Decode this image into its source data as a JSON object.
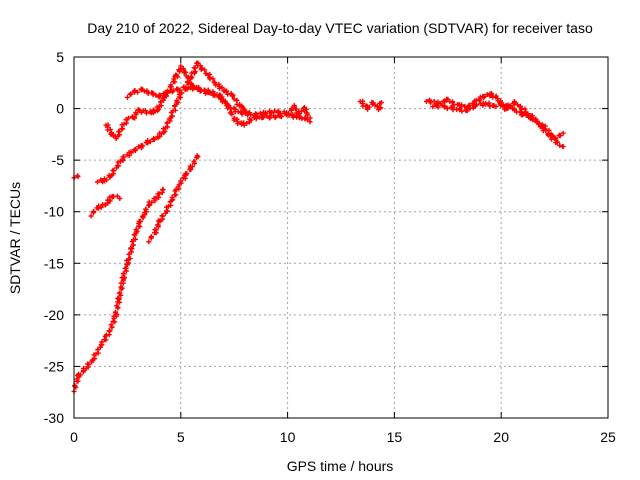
{
  "chart_data": {
    "type": "scatter",
    "title": "Day 210 of 2022, Sidereal Day-to-day VTEC variation (SDTVAR) for receiver taso",
    "xlabel": "GPS time / hours",
    "ylabel": "SDTVAR / TECUs",
    "xlim": [
      0,
      25
    ],
    "ylim": [
      -30,
      5
    ],
    "xticks": [
      0,
      5,
      10,
      15,
      20,
      25
    ],
    "yticks": [
      -30,
      -25,
      -20,
      -15,
      -10,
      -5,
      0,
      5
    ],
    "grid": true,
    "colors": {
      "series": "#ff0000",
      "grid": "#a0a0a0",
      "axis": "#000000"
    },
    "series": [
      {
        "name": "s1",
        "points": [
          [
            0.0,
            -27.3
          ],
          [
            0.2,
            -26.0
          ],
          [
            0.5,
            -25.3
          ],
          [
            0.9,
            -24.3
          ],
          [
            1.3,
            -22.8
          ],
          [
            1.7,
            -21.5
          ],
          [
            1.95,
            -20.0
          ],
          [
            2.1,
            -18.5
          ],
          [
            2.3,
            -16.5
          ],
          [
            2.5,
            -15.0
          ],
          [
            2.7,
            -13.5
          ],
          [
            2.9,
            -12.0
          ],
          [
            3.1,
            -11.0
          ],
          [
            3.3,
            -10.2
          ],
          [
            3.5,
            -9.3
          ],
          [
            3.8,
            -8.8
          ],
          [
            4.2,
            -7.8
          ]
        ]
      },
      {
        "name": "s2",
        "points": [
          [
            3.5,
            -12.8
          ],
          [
            3.8,
            -12.0
          ],
          [
            4.0,
            -11.0
          ],
          [
            4.3,
            -10.0
          ],
          [
            4.6,
            -8.8
          ],
          [
            4.9,
            -7.5
          ],
          [
            5.2,
            -6.5
          ],
          [
            5.5,
            -5.7
          ],
          [
            5.8,
            -4.5
          ]
        ]
      },
      {
        "name": "s3",
        "points": [
          [
            0.8,
            -10.3
          ],
          [
            1.1,
            -9.6
          ],
          [
            1.4,
            -9.4
          ],
          [
            1.6,
            -9.0
          ],
          [
            1.8,
            -8.5
          ],
          [
            2.1,
            -8.6
          ]
        ]
      },
      {
        "name": "s4",
        "points": [
          [
            1.1,
            -7.0
          ],
          [
            1.4,
            -7.0
          ],
          [
            1.7,
            -6.6
          ],
          [
            2.0,
            -5.6
          ],
          [
            2.3,
            -4.8
          ],
          [
            2.7,
            -4.2
          ],
          [
            3.1,
            -3.7
          ],
          [
            3.5,
            -3.2
          ],
          [
            3.9,
            -2.8
          ],
          [
            4.2,
            -2.2
          ],
          [
            4.5,
            -1.0
          ],
          [
            4.8,
            0.5
          ],
          [
            5.0,
            1.5
          ],
          [
            5.3,
            2.0
          ],
          [
            5.8,
            2.0
          ],
          [
            6.3,
            1.5
          ],
          [
            6.8,
            1.2
          ],
          [
            7.2,
            0.3
          ],
          [
            7.5,
            -1.0
          ],
          [
            7.8,
            -1.5
          ],
          [
            8.0,
            -1.5
          ],
          [
            8.4,
            -0.9
          ],
          [
            8.8,
            -0.8
          ],
          [
            9.2,
            -0.8
          ],
          [
            9.6,
            -0.8
          ],
          [
            10.0,
            -0.5
          ],
          [
            10.4,
            -0.8
          ],
          [
            10.8,
            -0.9
          ],
          [
            11.0,
            -1.2
          ]
        ]
      },
      {
        "name": "s5",
        "points": [
          [
            1.5,
            -1.5
          ],
          [
            1.8,
            -2.6
          ],
          [
            2.0,
            -2.8
          ],
          [
            2.2,
            -2.0
          ],
          [
            2.5,
            -1.0
          ],
          [
            2.8,
            -0.8
          ],
          [
            3.0,
            -0.2
          ],
          [
            3.3,
            -0.3
          ],
          [
            3.6,
            -0.4
          ],
          [
            3.9,
            -0.1
          ],
          [
            4.2,
            1.0
          ],
          [
            4.5,
            2.0
          ],
          [
            4.8,
            3.2
          ],
          [
            5.0,
            4.0
          ],
          [
            5.2,
            3.6
          ],
          [
            5.4,
            2.5
          ],
          [
            5.8,
            1.8
          ],
          [
            6.3,
            1.7
          ],
          [
            6.8,
            1.2
          ],
          [
            7.2,
            0.3
          ],
          [
            7.6,
            -0.2
          ],
          [
            8.0,
            -0.5
          ],
          [
            8.5,
            -0.6
          ],
          [
            9.0,
            -0.4
          ],
          [
            9.5,
            -0.3
          ],
          [
            10.0,
            -0.5
          ],
          [
            10.3,
            0.2
          ],
          [
            10.5,
            -0.5
          ],
          [
            10.8,
            0.0
          ],
          [
            11.0,
            -0.8
          ]
        ]
      },
      {
        "name": "s6",
        "points": [
          [
            2.5,
            1.2
          ],
          [
            2.8,
            1.6
          ],
          [
            3.2,
            1.8
          ],
          [
            3.6,
            1.5
          ],
          [
            4.0,
            1.2
          ],
          [
            4.4,
            1.6
          ],
          [
            4.8,
            1.8
          ],
          [
            5.2,
            2.0
          ],
          [
            5.6,
            3.5
          ],
          [
            5.8,
            4.5
          ],
          [
            6.0,
            3.8
          ],
          [
            6.3,
            3.2
          ],
          [
            6.6,
            2.5
          ],
          [
            7.0,
            1.8
          ],
          [
            7.4,
            1.3
          ],
          [
            7.8,
            0.2
          ],
          [
            8.2,
            -0.5
          ]
        ]
      },
      {
        "name": "s7",
        "points": [
          [
            0.0,
            -6.6
          ],
          [
            0.2,
            -6.6
          ]
        ]
      },
      {
        "name": "s8",
        "points": [
          [
            13.4,
            0.8
          ],
          [
            13.7,
            0.0
          ],
          [
            14.0,
            0.5
          ],
          [
            14.3,
            0.0
          ],
          [
            14.4,
            0.6
          ]
        ]
      },
      {
        "name": "s9",
        "points": [
          [
            16.5,
            0.8
          ],
          [
            17.0,
            0.5
          ],
          [
            17.5,
            0.8
          ],
          [
            18.0,
            0.3
          ],
          [
            18.5,
            0.2
          ],
          [
            19.0,
            1.0
          ],
          [
            19.5,
            1.4
          ],
          [
            19.8,
            1.0
          ],
          [
            20.2,
            0.0
          ],
          [
            20.6,
            0.6
          ],
          [
            21.0,
            0.0
          ],
          [
            21.4,
            -0.8
          ],
          [
            21.8,
            -1.5
          ],
          [
            22.2,
            -2.5
          ],
          [
            22.6,
            -3.2
          ],
          [
            22.9,
            -3.8
          ]
        ]
      },
      {
        "name": "s10",
        "points": [
          [
            16.8,
            0.3
          ],
          [
            17.3,
            0.2
          ],
          [
            17.8,
            0.0
          ],
          [
            18.3,
            -0.2
          ],
          [
            18.8,
            0.3
          ],
          [
            19.3,
            0.5
          ],
          [
            19.6,
            0.2
          ],
          [
            20.0,
            0.4
          ],
          [
            20.5,
            0.0
          ],
          [
            21.0,
            -0.5
          ],
          [
            21.5,
            -1.0
          ],
          [
            22.0,
            -1.8
          ],
          [
            22.5,
            -2.8
          ],
          [
            22.9,
            -2.5
          ]
        ]
      }
    ]
  }
}
